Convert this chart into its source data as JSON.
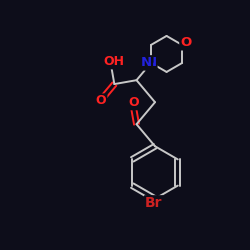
{
  "bg_color": "#0d0d1a",
  "bond_color": "#c8c8c8",
  "atom_colors": {
    "O": "#ff2222",
    "N": "#2222dd",
    "Br": "#cc2222",
    "C": "#c8c8c8"
  },
  "figsize": [
    2.5,
    2.5
  ],
  "dpi": 100,
  "lw": 1.4,
  "fs": 9.0
}
